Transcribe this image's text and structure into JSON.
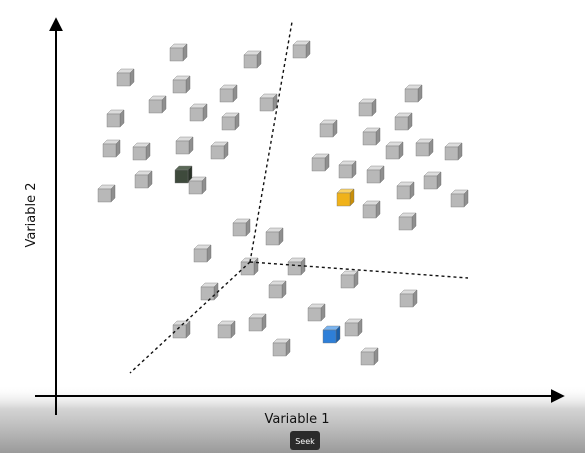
{
  "x_axis_label": "Variable 1",
  "y_axis_label": "Variable 2",
  "seek_button": "Seek"
}
